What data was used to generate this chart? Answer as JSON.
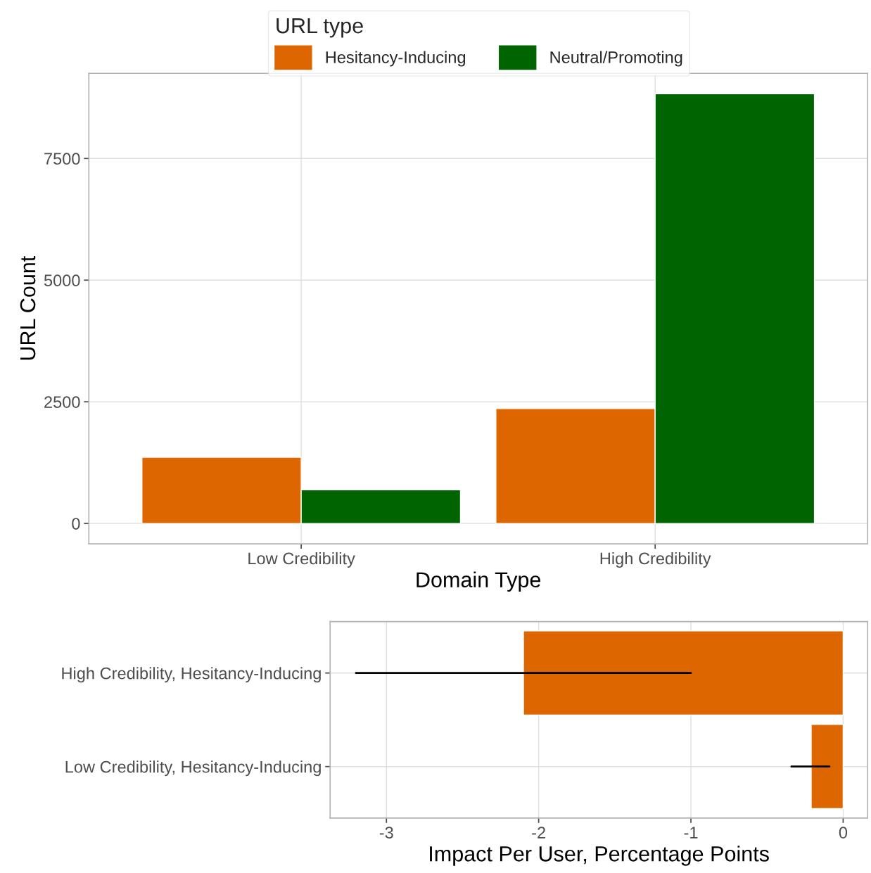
{
  "chart_data": [
    {
      "type": "bar",
      "xlabel": "Domain Type",
      "ylabel": "URL Count",
      "legend_title": "URL type",
      "legend": "top",
      "categories": [
        "Low Credibility",
        "High Credibility"
      ],
      "series": [
        {
          "name": "Hesitancy-Inducing",
          "color": "#dd6600",
          "values": [
            1360,
            2360
          ]
        },
        {
          "name": "Neutral/Promoting",
          "color": "#006400",
          "values": [
            690,
            8830
          ]
        }
      ],
      "ylim": [
        -420,
        9250
      ],
      "yticks": [
        0,
        2500,
        5000,
        7500
      ],
      "grid": true
    },
    {
      "type": "bar",
      "orientation": "horizontal",
      "xlabel": "Impact Per User, Percentage Points",
      "categories": [
        "High Credibility, Hesitancy-Inducing",
        "Low Credibility, Hesitancy-Inducing"
      ],
      "series": [
        {
          "color": "#dd6600",
          "values": [
            -2.1,
            -0.21
          ],
          "errors": [
            [
              -3.2,
              -1.0
            ],
            [
              -0.34,
              -0.09
            ]
          ]
        }
      ],
      "xlim": [
        -3.37,
        0.16
      ],
      "xticks": [
        {
          "value": -3,
          "label": "-3"
        },
        {
          "value": -2,
          "label": "-2"
        },
        {
          "value": -1,
          "label": "-1"
        },
        0
      ],
      "grid": true
    }
  ]
}
